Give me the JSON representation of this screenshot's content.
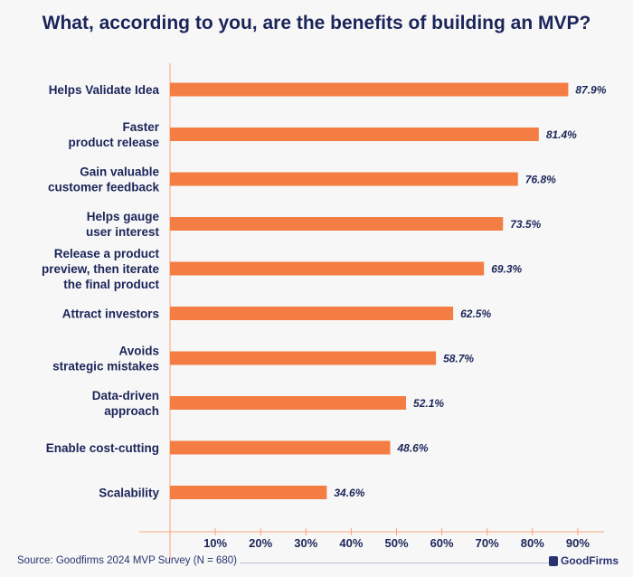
{
  "chart_data": {
    "type": "bar",
    "orientation": "horizontal",
    "title": "What, according to you, are the benefits of building an MVP?",
    "categories": [
      [
        "Helps Validate Idea"
      ],
      [
        "Faster",
        "product release"
      ],
      [
        "Gain valuable",
        "customer feedback"
      ],
      [
        "Helps gauge",
        "user interest"
      ],
      [
        "Release a product",
        "preview, then iterate",
        "the final product"
      ],
      [
        "Attract investors"
      ],
      [
        "Avoids",
        "strategic mistakes"
      ],
      [
        "Data-driven",
        "approach"
      ],
      [
        "Enable cost-cutting"
      ],
      [
        "Scalability"
      ]
    ],
    "values": [
      87.9,
      81.4,
      76.8,
      73.5,
      69.3,
      62.5,
      58.7,
      52.1,
      48.6,
      34.6
    ],
    "value_labels": [
      "87.9%",
      "81.4%",
      "76.8%",
      "73.5%",
      "69.3%",
      "62.5%",
      "58.7%",
      "52.1%",
      "48.6%",
      "34.6%"
    ],
    "xticks": [
      "10%",
      "20%",
      "30%",
      "40%",
      "50%",
      "60%",
      "70%",
      "80%",
      "90%"
    ],
    "xlim": [
      0,
      95
    ],
    "grid": false,
    "bar_color": "#f47d44",
    "axis_color": "#f6a47e",
    "text_color": "#1b2559"
  },
  "footer": {
    "source": "Source: Goodfirms 2024 MVP Survey (N = 680)",
    "brand": "GoodFirms"
  }
}
